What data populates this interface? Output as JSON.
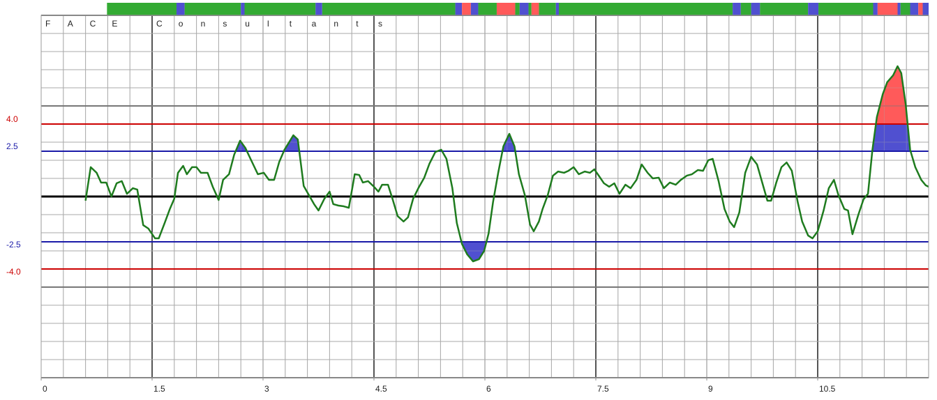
{
  "chart_data": {
    "type": "line",
    "title": "FACE Consultants",
    "xlim": [
      0,
      12
    ],
    "ylim": [
      -10,
      10
    ],
    "xticks": [
      0,
      1.5,
      3,
      4.5,
      6,
      7.5,
      9,
      10.5
    ],
    "grid": true,
    "thresholds": [
      {
        "value": 2.5,
        "label": "2.5",
        "color": "#1a1aa8",
        "fill": "#5050d0"
      },
      {
        "value": -2.5,
        "label": "-2.5",
        "color": "#1a1aa8",
        "fill": "#5050d0"
      },
      {
        "value": 4,
        "label": "4.0",
        "color": "#cc0000",
        "fill": "#ff5a5a"
      },
      {
        "value": -4,
        "label": "-4.0",
        "color": "#cc0000",
        "fill": "#ff5a5a"
      }
    ],
    "status_bar": [
      {
        "start": 0.89,
        "end": 1.83,
        "color": "#33aa33"
      },
      {
        "start": 1.83,
        "end": 1.94,
        "color": "#5050d0"
      },
      {
        "start": 1.94,
        "end": 2.7,
        "color": "#33aa33"
      },
      {
        "start": 2.7,
        "end": 2.75,
        "color": "#5050d0"
      },
      {
        "start": 2.75,
        "end": 3.71,
        "color": "#33aa33"
      },
      {
        "start": 3.71,
        "end": 3.8,
        "color": "#5050d0"
      },
      {
        "start": 3.8,
        "end": 5.6,
        "color": "#33aa33"
      },
      {
        "start": 5.6,
        "end": 5.69,
        "color": "#5050d0"
      },
      {
        "start": 5.69,
        "end": 5.81,
        "color": "#ff5a5a"
      },
      {
        "start": 5.81,
        "end": 5.91,
        "color": "#5050d0"
      },
      {
        "start": 5.91,
        "end": 6.16,
        "color": "#33aa33"
      },
      {
        "start": 6.16,
        "end": 6.41,
        "color": "#ff5a5a"
      },
      {
        "start": 6.41,
        "end": 6.47,
        "color": "#33aa33"
      },
      {
        "start": 6.47,
        "end": 6.59,
        "color": "#5050d0"
      },
      {
        "start": 6.59,
        "end": 6.63,
        "color": "#33aa33"
      },
      {
        "start": 6.63,
        "end": 6.73,
        "color": "#ff5a5a"
      },
      {
        "start": 6.73,
        "end": 6.96,
        "color": "#33aa33"
      },
      {
        "start": 6.96,
        "end": 7.0,
        "color": "#5050d0"
      },
      {
        "start": 7.0,
        "end": 9.35,
        "color": "#33aa33"
      },
      {
        "start": 9.35,
        "end": 9.46,
        "color": "#5050d0"
      },
      {
        "start": 9.46,
        "end": 9.6,
        "color": "#33aa33"
      },
      {
        "start": 9.6,
        "end": 9.72,
        "color": "#5050d0"
      },
      {
        "start": 9.72,
        "end": 10.37,
        "color": "#33aa33"
      },
      {
        "start": 10.37,
        "end": 10.51,
        "color": "#5050d0"
      },
      {
        "start": 10.51,
        "end": 11.25,
        "color": "#33aa33"
      },
      {
        "start": 11.25,
        "end": 11.31,
        "color": "#5050d0"
      },
      {
        "start": 11.31,
        "end": 11.58,
        "color": "#ff5a5a"
      },
      {
        "start": 11.58,
        "end": 11.62,
        "color": "#5050d0"
      },
      {
        "start": 11.62,
        "end": 11.75,
        "color": "#33aa33"
      },
      {
        "start": 11.75,
        "end": 11.86,
        "color": "#5050d0"
      },
      {
        "start": 11.86,
        "end": 11.92,
        "color": "#ff5a5a"
      },
      {
        "start": 11.92,
        "end": 12.0,
        "color": "#5050d0"
      }
    ],
    "series": [
      {
        "color": "#1e7b1e",
        "x": [
          0.6,
          0.67,
          0.75,
          0.81,
          0.88,
          0.95,
          1.02,
          1.09,
          1.16,
          1.24,
          1.3,
          1.38,
          1.45,
          1.54,
          1.59,
          1.67,
          1.74,
          1.8,
          1.85,
          1.92,
          1.97,
          2.04,
          2.1,
          2.16,
          2.25,
          2.32,
          2.4,
          2.46,
          2.54,
          2.61,
          2.69,
          2.76,
          2.84,
          2.93,
          3.01,
          3.08,
          3.15,
          3.22,
          3.29,
          3.41,
          3.47,
          3.55,
          3.62,
          3.69,
          3.75,
          3.83,
          3.9,
          3.95,
          4.02,
          4.09,
          4.16,
          4.24,
          4.3,
          4.35,
          4.42,
          4.5,
          4.56,
          4.61,
          4.69,
          4.75,
          4.82,
          4.9,
          4.96,
          5.03,
          5.1,
          5.18,
          5.25,
          5.33,
          5.41,
          5.48,
          5.56,
          5.62,
          5.69,
          5.76,
          5.84,
          5.92,
          5.99,
          6.05,
          6.11,
          6.18,
          6.25,
          6.33,
          6.4,
          6.46,
          6.54,
          6.61,
          6.66,
          6.73,
          6.78,
          6.85,
          6.92,
          6.99,
          7.07,
          7.13,
          7.2,
          7.27,
          7.35,
          7.42,
          7.48,
          7.54,
          7.61,
          7.68,
          7.75,
          7.82,
          7.9,
          7.97,
          8.05,
          8.12,
          8.2,
          8.27,
          8.35,
          8.42,
          8.5,
          8.58,
          8.65,
          8.73,
          8.8,
          8.88,
          8.95,
          9.02,
          9.08,
          9.16,
          9.24,
          9.31,
          9.37,
          9.44,
          9.52,
          9.6,
          9.68,
          9.75,
          9.82,
          9.87,
          9.94,
          10.01,
          10.08,
          10.15,
          10.23,
          10.29,
          10.37,
          10.43,
          10.5,
          10.58,
          10.65,
          10.72,
          10.78,
          10.86,
          10.91,
          10.97,
          11.05,
          11.12,
          11.18,
          11.24,
          11.3,
          11.38,
          11.44,
          11.52,
          11.58,
          11.63,
          11.69,
          11.75,
          11.82,
          11.9,
          11.96,
          12.0
        ],
        "values": [
          -0.23,
          1.62,
          1.31,
          0.77,
          0.77,
          0,
          0.73,
          0.85,
          0.15,
          0.46,
          0.38,
          -1.58,
          -1.77,
          -2.31,
          -2.31,
          -1.46,
          -0.69,
          -0.12,
          1.31,
          1.69,
          1.23,
          1.62,
          1.62,
          1.31,
          1.31,
          0.54,
          -0.19,
          0.92,
          1.23,
          2.31,
          3.08,
          2.69,
          2.0,
          1.23,
          1.31,
          0.92,
          0.92,
          1.92,
          2.58,
          3.38,
          3.15,
          0.58,
          0.08,
          -0.42,
          -0.77,
          -0.12,
          0.27,
          -0.42,
          -0.5,
          -0.54,
          -0.62,
          1.23,
          1.19,
          0.77,
          0.85,
          0.54,
          0.27,
          0.65,
          0.65,
          -0.12,
          -1.08,
          -1.38,
          -1.15,
          -0.12,
          0.46,
          1.04,
          1.81,
          2.46,
          2.58,
          2.08,
          0.46,
          -1.46,
          -2.62,
          -3.19,
          -3.58,
          -3.46,
          -3.0,
          -2.04,
          -0.31,
          1.31,
          2.77,
          3.46,
          2.77,
          1.23,
          0.08,
          -1.54,
          -1.92,
          -1.38,
          -0.69,
          0.08,
          1.15,
          1.38,
          1.31,
          1.42,
          1.62,
          1.23,
          1.38,
          1.31,
          1.5,
          1.15,
          0.73,
          0.54,
          0.73,
          0.15,
          0.65,
          0.46,
          0.92,
          1.77,
          1.31,
          1.0,
          1.04,
          0.46,
          0.77,
          0.65,
          0.92,
          1.15,
          1.23,
          1.46,
          1.42,
          2.0,
          2.08,
          0.85,
          -0.69,
          -1.38,
          -1.69,
          -0.88,
          1.31,
          2.19,
          1.77,
          0.77,
          -0.23,
          -0.23,
          0.77,
          1.62,
          1.88,
          1.42,
          -0.31,
          -1.38,
          -2.15,
          -2.31,
          -1.92,
          -0.77,
          0.46,
          0.92,
          0.08,
          -0.69,
          -0.77,
          -2.08,
          -1.0,
          -0.15,
          0.15,
          2.58,
          4.38,
          5.65,
          6.31,
          6.69,
          7.19,
          6.81,
          5.08,
          2.58,
          1.62,
          0.92,
          0.62,
          0.54
        ]
      }
    ]
  }
}
